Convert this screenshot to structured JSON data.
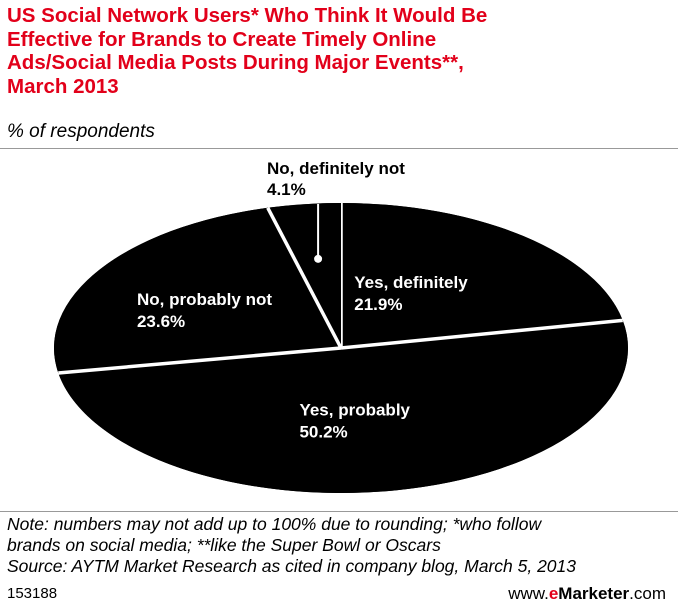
{
  "header": {
    "title_lines": [
      "US Social Network Users* Who Think It Would Be",
      "Effective for Brands to Create Timely Online",
      "Ads/Social Media Posts During Major Events**,",
      "March 2013"
    ],
    "subtitle": "% of respondents"
  },
  "chart_data": {
    "type": "pie",
    "title": "US Social Network Users* Who Think It Would Be Effective for Brands to Create Timely Online Ads/Social Media Posts During Major Events**, March 2013",
    "subtitle": "% of respondents",
    "slices": [
      {
        "label": "Yes, definitely",
        "value": 21.9,
        "value_label": "21.9%"
      },
      {
        "label": "Yes, probably",
        "value": 50.2,
        "value_label": "50.2%"
      },
      {
        "label": "No, probably not",
        "value": 23.6,
        "value_label": "23.6%"
      },
      {
        "label": "No, definitely not",
        "value": 4.1,
        "value_label": "4.1%"
      }
    ],
    "slice_color": "#000000",
    "separator_color": "#ffffff",
    "label_color_inside": "#ffffff",
    "label_color_outside": "#000000"
  },
  "footer": {
    "note_lines": [
      "Note: numbers may not add up to 100% due to rounding; *who follow",
      "brands on social media; **like the Super Bowl or Oscars",
      "Source: AYTM Market Research as cited in company blog, March 5, 2013"
    ],
    "chart_id": "153188",
    "brand_prefix": "www.",
    "brand_e": "e",
    "brand_name": "Marketer",
    "brand_suffix": ".com"
  },
  "colors": {
    "accent": "#e2001a"
  }
}
